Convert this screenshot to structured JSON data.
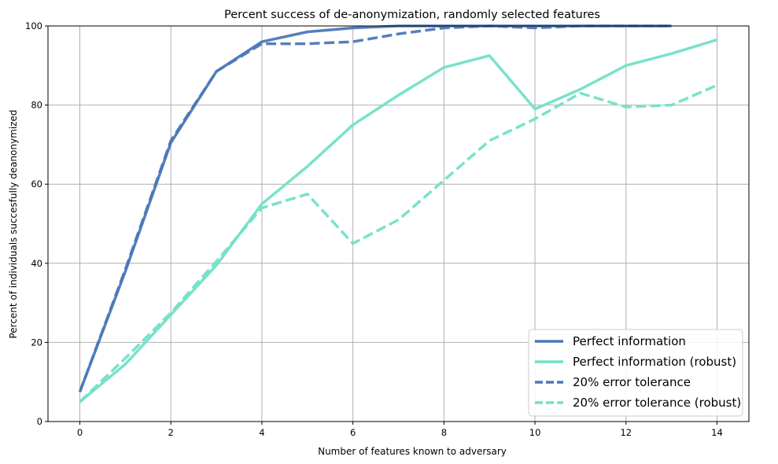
{
  "chart_data": {
    "type": "line",
    "title": "Percent success of de-anonymization, randomly selected features",
    "xlabel": "Number of features known to adversary",
    "ylabel": "Percent of individuals succesfully deanonymized",
    "xlim": [
      -0.7,
      14.7
    ],
    "ylim": [
      0,
      100
    ],
    "xticks": [
      0,
      2,
      4,
      6,
      8,
      10,
      12,
      14
    ],
    "yticks": [
      0,
      20,
      40,
      60,
      80,
      100
    ],
    "grid": true,
    "legend_position": "lower-right",
    "series": [
      {
        "name": "Perfect information",
        "color": "#4c78b8",
        "dash": "solid",
        "x": [
          0,
          1,
          2,
          3,
          4,
          5,
          6,
          7,
          8,
          9,
          10,
          11,
          12,
          13
        ],
        "y": [
          7.5,
          38,
          70.5,
          88.5,
          96,
          98.5,
          99.5,
          100,
          100,
          100,
          100,
          100,
          100,
          100
        ]
      },
      {
        "name": "Perfect information (robust)",
        "color": "#72e0c8",
        "dash": "solid",
        "x": [
          0,
          1,
          2,
          3,
          4,
          5,
          6,
          7,
          8,
          9,
          10,
          11,
          12,
          13,
          14
        ],
        "y": [
          5,
          14.5,
          27,
          39.5,
          55,
          64.5,
          75,
          82.5,
          89.5,
          92.5,
          79,
          84,
          90,
          93,
          96.5
        ]
      },
      {
        "name": "20% error tolerance",
        "color": "#4c78b8",
        "dash": "dashed",
        "x": [
          0,
          1,
          2,
          3,
          4,
          5,
          6,
          7,
          8,
          9,
          10,
          11,
          12,
          13
        ],
        "y": [
          7.5,
          38.5,
          71,
          88.5,
          95.5,
          95.5,
          96,
          98,
          99.5,
          100,
          99.5,
          100,
          100,
          100
        ]
      },
      {
        "name": "20% error tolerance (robust)",
        "color": "#72e0c8",
        "dash": "dashed",
        "x": [
          0,
          1,
          2,
          3,
          4,
          5,
          6,
          7,
          8,
          9,
          10,
          11,
          12,
          13,
          14
        ],
        "y": [
          5,
          16,
          27.5,
          40.5,
          54,
          57.5,
          45,
          51,
          61,
          71,
          76.5,
          83,
          79.5,
          80,
          85
        ]
      }
    ]
  }
}
